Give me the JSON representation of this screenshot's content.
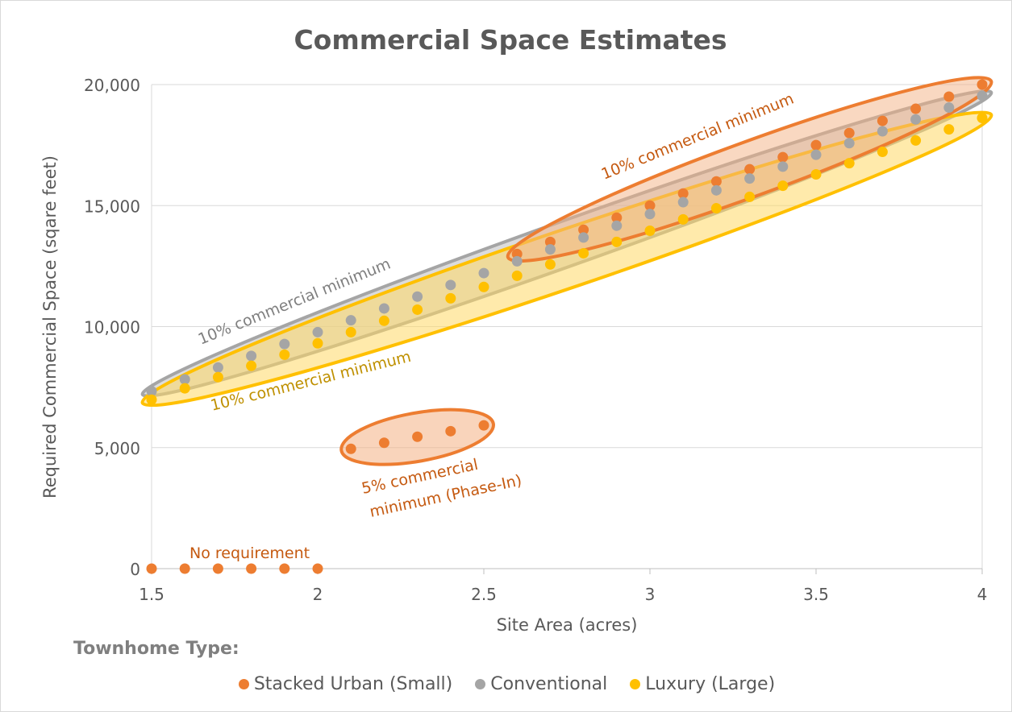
{
  "chart_data": {
    "type": "scatter",
    "title": "Commercial Space Estimates",
    "xlabel": "Site Area (acres)",
    "ylabel": "Required Commercial Space (sqare feet)",
    "xlim": [
      1.5,
      4
    ],
    "ylim": [
      0,
      20000
    ],
    "x_ticks": [
      "1.5",
      "2",
      "2.5",
      "3",
      "3.5",
      "4"
    ],
    "y_ticks": [
      "0",
      "5,000",
      "10,000",
      "15,000",
      "20,000"
    ],
    "grid": "horizontal",
    "legend_position": "bottom",
    "legend_title": "Townhome Type:",
    "series": [
      {
        "name": "Stacked Urban (Small)",
        "color": "#ed7d31",
        "points": [
          [
            1.5,
            0
          ],
          [
            1.6,
            0
          ],
          [
            1.7,
            0
          ],
          [
            1.8,
            0
          ],
          [
            1.9,
            0
          ],
          [
            2.0,
            0
          ],
          [
            2.1,
            4950
          ],
          [
            2.2,
            5200
          ],
          [
            2.3,
            5450
          ],
          [
            2.4,
            5680
          ],
          [
            2.5,
            5920
          ],
          [
            2.6,
            13000
          ],
          [
            2.7,
            13500
          ],
          [
            2.8,
            14000
          ],
          [
            2.9,
            14500
          ],
          [
            3.0,
            15000
          ],
          [
            3.1,
            15500
          ],
          [
            3.2,
            16000
          ],
          [
            3.3,
            16500
          ],
          [
            3.4,
            17000
          ],
          [
            3.5,
            17500
          ],
          [
            3.6,
            18000
          ],
          [
            3.7,
            18500
          ],
          [
            3.8,
            19000
          ],
          [
            3.9,
            19500
          ],
          [
            4.0,
            20000
          ]
        ]
      },
      {
        "name": "Conventional",
        "color": "#a5a5a5",
        "points": [
          [
            1.5,
            7330
          ],
          [
            1.6,
            7820
          ],
          [
            1.7,
            8310
          ],
          [
            1.8,
            8790
          ],
          [
            1.9,
            9280
          ],
          [
            2.0,
            9770
          ],
          [
            2.1,
            10260
          ],
          [
            2.2,
            10750
          ],
          [
            2.3,
            11240
          ],
          [
            2.4,
            11720
          ],
          [
            2.5,
            12210
          ],
          [
            2.6,
            12700
          ],
          [
            2.7,
            13190
          ],
          [
            2.8,
            13680
          ],
          [
            2.9,
            14170
          ],
          [
            3.0,
            14650
          ],
          [
            3.1,
            15140
          ],
          [
            3.2,
            15630
          ],
          [
            3.3,
            16120
          ],
          [
            3.4,
            16610
          ],
          [
            3.5,
            17100
          ],
          [
            3.6,
            17580
          ],
          [
            3.7,
            18070
          ],
          [
            3.8,
            18560
          ],
          [
            3.9,
            19050
          ],
          [
            4.0,
            19540
          ]
        ]
      },
      {
        "name": "Luxury (Large)",
        "color": "#ffc000",
        "points": [
          [
            1.5,
            6980
          ],
          [
            1.6,
            7450
          ],
          [
            1.7,
            7910
          ],
          [
            1.8,
            8380
          ],
          [
            1.9,
            8840
          ],
          [
            2.0,
            9310
          ],
          [
            2.1,
            9770
          ],
          [
            2.2,
            10240
          ],
          [
            2.3,
            10700
          ],
          [
            2.4,
            11170
          ],
          [
            2.5,
            11640
          ],
          [
            2.6,
            12100
          ],
          [
            2.7,
            12570
          ],
          [
            2.8,
            13030
          ],
          [
            2.9,
            13500
          ],
          [
            3.0,
            13960
          ],
          [
            3.1,
            14430
          ],
          [
            3.2,
            14890
          ],
          [
            3.3,
            15360
          ],
          [
            3.4,
            15820
          ],
          [
            3.5,
            16290
          ],
          [
            3.6,
            16750
          ],
          [
            3.7,
            17220
          ],
          [
            3.8,
            17690
          ],
          [
            3.9,
            18150
          ],
          [
            4.0,
            18620
          ]
        ]
      }
    ],
    "annotations": [
      {
        "id": "stacked-high",
        "text": "10% commercial minimum",
        "color": "#c55a11"
      },
      {
        "id": "conventional",
        "text": "10% commercial minimum",
        "color": "#7f7f7f"
      },
      {
        "id": "luxury",
        "text": "10% commercial minimum",
        "color": "#bf9000"
      },
      {
        "id": "phase-in-1",
        "text": "5% commercial",
        "color": "#c55a11"
      },
      {
        "id": "phase-in-2",
        "text": "minimum (Phase-In)",
        "color": "#c55a11"
      },
      {
        "id": "no-req",
        "text": "No requirement",
        "color": "#c55a11"
      }
    ]
  }
}
